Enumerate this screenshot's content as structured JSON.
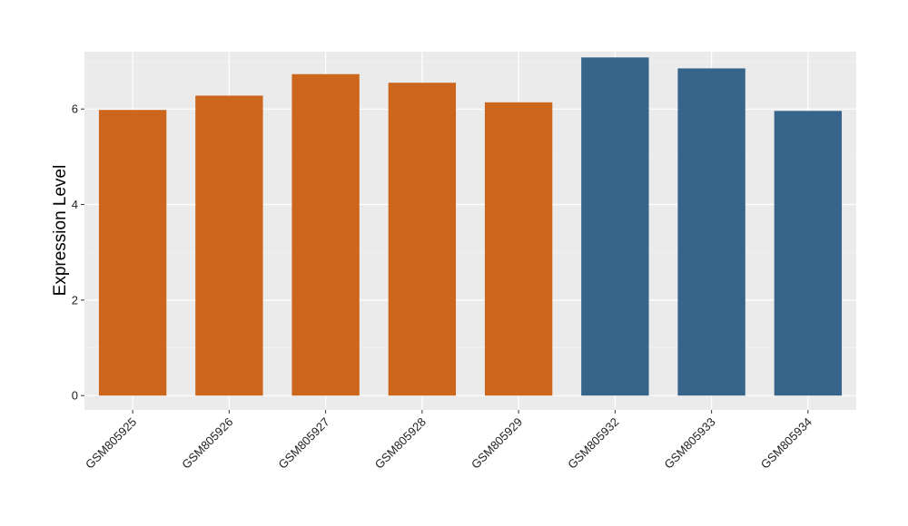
{
  "chart_data": {
    "type": "bar",
    "title": "",
    "xlabel": "",
    "ylabel": "Expression Level",
    "ylim": [
      -0.3,
      7.2
    ],
    "yticks": [
      0,
      2,
      4,
      6
    ],
    "grid": true,
    "categories": [
      "GSM805925",
      "GSM805926",
      "GSM805927",
      "GSM805928",
      "GSM805929",
      "GSM805932",
      "GSM805933",
      "GSM805934"
    ],
    "values": [
      5.98,
      6.28,
      6.73,
      6.55,
      6.14,
      7.08,
      6.85,
      5.96
    ],
    "colors": [
      "#cc661c",
      "#cc661c",
      "#cc661c",
      "#cc661c",
      "#cc661c",
      "#36648b",
      "#36648b",
      "#36648b"
    ]
  }
}
